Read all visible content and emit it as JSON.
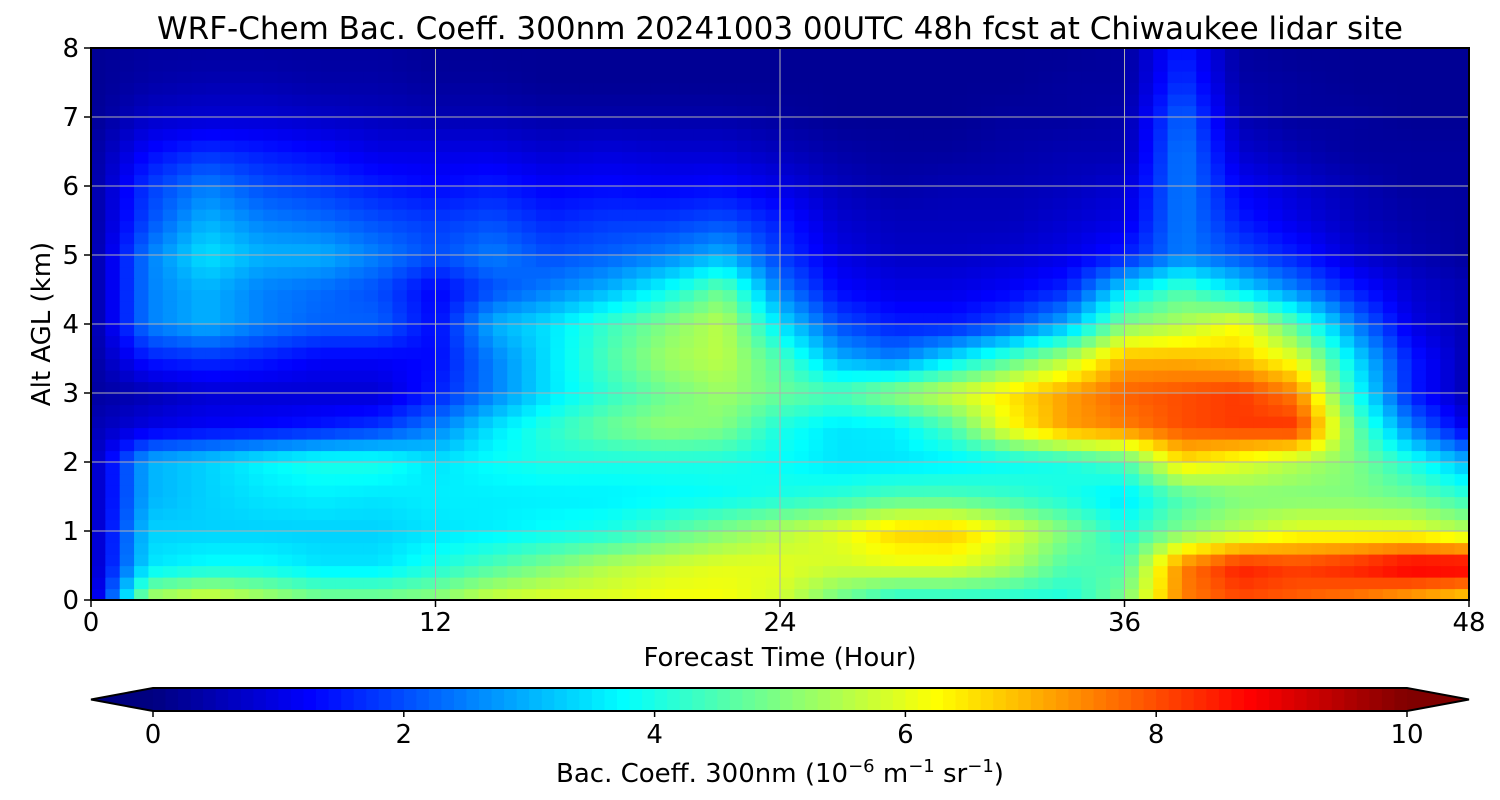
{
  "chart_data": {
    "type": "heatmap",
    "title": "WRF-Chem Bac. Coeff. 300nm  20241003 00UTC 48h fcst at Chiwaukee lidar site",
    "xlabel": "Forecast Time (Hour)",
    "ylabel": "Alt AGL (km)",
    "xlim": [
      0,
      48
    ],
    "ylim": [
      0,
      8
    ],
    "x_ticks": [
      0,
      12,
      24,
      36,
      48
    ],
    "y_ticks": [
      0,
      1,
      2,
      3,
      4,
      5,
      6,
      7,
      8
    ],
    "grid": true,
    "colormap": "jet",
    "x": [
      0,
      2,
      4,
      6,
      8,
      10,
      12,
      14,
      16,
      18,
      20,
      22,
      24,
      26,
      28,
      30,
      32,
      34,
      36,
      38,
      40,
      42,
      44,
      46,
      48
    ],
    "y": [
      0,
      0.5,
      1,
      1.5,
      2,
      2.5,
      3,
      3.5,
      4,
      4.5,
      5,
      5.5,
      6,
      6.5,
      7,
      7.5,
      8
    ],
    "z": [
      [
        0.5,
        5.5,
        6.0,
        5.5,
        5.0,
        5.0,
        5.2,
        5.8,
        6.0,
        6.0,
        6.2,
        6.2,
        5.8,
        4.8,
        4.0,
        4.0,
        4.0,
        4.0,
        5.0,
        7.5,
        8.0,
        7.8,
        7.5,
        7.0,
        6.5
      ],
      [
        0.5,
        3.5,
        3.8,
        3.8,
        3.5,
        3.5,
        4.0,
        4.5,
        5.0,
        5.5,
        5.8,
        6.0,
        6.0,
        5.8,
        6.0,
        6.0,
        5.5,
        4.5,
        4.5,
        7.5,
        8.5,
        8.2,
        8.5,
        9.0,
        9.0
      ],
      [
        0.5,
        3.3,
        3.3,
        3.3,
        3.3,
        3.3,
        3.5,
        3.6,
        3.8,
        4.0,
        4.5,
        5.0,
        5.5,
        6.0,
        6.7,
        6.8,
        6.0,
        5.0,
        4.0,
        5.0,
        5.5,
        6.0,
        6.0,
        6.0,
        5.5
      ],
      [
        0.5,
        3.0,
        3.3,
        3.5,
        3.6,
        3.5,
        3.6,
        3.6,
        3.6,
        3.6,
        3.7,
        3.8,
        4.0,
        4.2,
        4.5,
        4.5,
        4.3,
        4.0,
        3.5,
        4.5,
        5.0,
        5.0,
        5.0,
        4.8,
        4.2
      ],
      [
        0.5,
        3.0,
        3.3,
        3.7,
        4.0,
        4.0,
        3.5,
        3.8,
        4.0,
        4.0,
        4.0,
        4.0,
        3.8,
        3.5,
        3.5,
        3.6,
        3.8,
        4.0,
        4.5,
        6.5,
        6.0,
        5.5,
        5.0,
        4.0,
        3.0
      ],
      [
        0.5,
        1.0,
        1.2,
        1.3,
        1.5,
        1.8,
        2.5,
        3.5,
        4.2,
        4.8,
        5.2,
        5.0,
        4.0,
        3.5,
        3.6,
        4.5,
        6.2,
        7.2,
        7.5,
        8.0,
        8.2,
        8.3,
        4.8,
        2.5,
        1.0
      ],
      [
        0.3,
        0.5,
        0.8,
        0.8,
        0.8,
        0.8,
        1.5,
        2.5,
        3.5,
        4.2,
        4.8,
        5.3,
        4.8,
        4.5,
        5.2,
        5.8,
        6.5,
        7.2,
        7.8,
        8.0,
        8.2,
        7.5,
        4.0,
        1.5,
        0.5
      ],
      [
        0.3,
        1.5,
        1.7,
        1.5,
        1.2,
        1.2,
        1.3,
        2.5,
        3.5,
        4.5,
        5.3,
        5.6,
        4.5,
        3.0,
        2.5,
        3.5,
        4.5,
        5.5,
        7.0,
        7.0,
        6.8,
        6.0,
        3.5,
        1.5,
        0.5
      ],
      [
        0.3,
        2.5,
        3.0,
        2.5,
        2.2,
        2.2,
        1.3,
        3.0,
        3.5,
        4.3,
        5.0,
        5.6,
        3.5,
        2.0,
        1.5,
        1.5,
        2.0,
        3.0,
        5.0,
        5.5,
        6.2,
        4.5,
        2.5,
        1.0,
        0.5
      ],
      [
        0.3,
        2.5,
        3.0,
        2.5,
        2.3,
        2.0,
        1.2,
        2.0,
        2.5,
        3.0,
        3.8,
        4.8,
        2.5,
        1.3,
        1.0,
        1.0,
        1.2,
        1.6,
        3.5,
        4.5,
        3.5,
        2.5,
        1.5,
        0.8,
        0.5
      ],
      [
        0.3,
        2.5,
        3.5,
        3.0,
        3.0,
        2.5,
        2.0,
        2.5,
        2.0,
        2.2,
        2.5,
        3.0,
        1.8,
        1.0,
        0.7,
        0.7,
        0.8,
        1.0,
        1.5,
        2.5,
        2.0,
        1.5,
        0.8,
        0.5,
        0.3
      ],
      [
        0.3,
        2.0,
        3.0,
        2.5,
        2.3,
        2.0,
        1.8,
        2.0,
        1.6,
        1.8,
        1.8,
        2.0,
        1.5,
        0.8,
        0.6,
        0.6,
        0.6,
        0.8,
        1.0,
        2.5,
        1.5,
        1.0,
        0.6,
        0.4,
        0.3
      ],
      [
        0.3,
        1.8,
        2.5,
        2.0,
        1.8,
        1.5,
        1.3,
        1.5,
        1.2,
        1.3,
        1.2,
        1.3,
        1.0,
        0.6,
        0.4,
        0.5,
        0.5,
        0.6,
        0.8,
        2.5,
        1.2,
        0.8,
        0.5,
        0.3,
        0.3
      ],
      [
        0.3,
        1.3,
        1.7,
        1.5,
        1.3,
        1.0,
        1.0,
        1.0,
        0.8,
        0.9,
        0.8,
        0.8,
        0.6,
        0.4,
        0.3,
        0.3,
        0.4,
        0.5,
        0.5,
        2.5,
        0.8,
        0.5,
        0.3,
        0.3,
        0.3
      ],
      [
        0.2,
        0.7,
        0.8,
        0.8,
        0.7,
        0.6,
        0.5,
        0.5,
        0.4,
        0.4,
        0.4,
        0.4,
        0.3,
        0.2,
        0.2,
        0.2,
        0.3,
        0.3,
        0.4,
        2.3,
        0.5,
        0.3,
        0.3,
        0.2,
        0.2
      ],
      [
        0.2,
        0.4,
        0.5,
        0.5,
        0.4,
        0.4,
        0.3,
        0.3,
        0.2,
        0.2,
        0.2,
        0.2,
        0.2,
        0.2,
        0.2,
        0.2,
        0.2,
        0.3,
        0.3,
        1.8,
        0.4,
        0.3,
        0.2,
        0.2,
        0.2
      ],
      [
        0.2,
        0.3,
        0.3,
        0.3,
        0.3,
        0.3,
        0.2,
        0.2,
        0.2,
        0.2,
        0.2,
        0.2,
        0.2,
        0.2,
        0.2,
        0.2,
        0.2,
        0.2,
        0.3,
        1.5,
        0.3,
        0.2,
        0.2,
        0.2,
        0.2
      ]
    ],
    "colorbar": {
      "label_main": "Bac. Coeff. 300nm  (10",
      "label_exp1": "−6",
      "label_mid1": " m",
      "label_exp2": "−1",
      "label_mid2": " sr",
      "label_exp3": "−1",
      "label_end": ")",
      "vmin": 0,
      "vmax": 10,
      "ticks": [
        0,
        2,
        4,
        6,
        8,
        10
      ],
      "extend": "both"
    }
  }
}
